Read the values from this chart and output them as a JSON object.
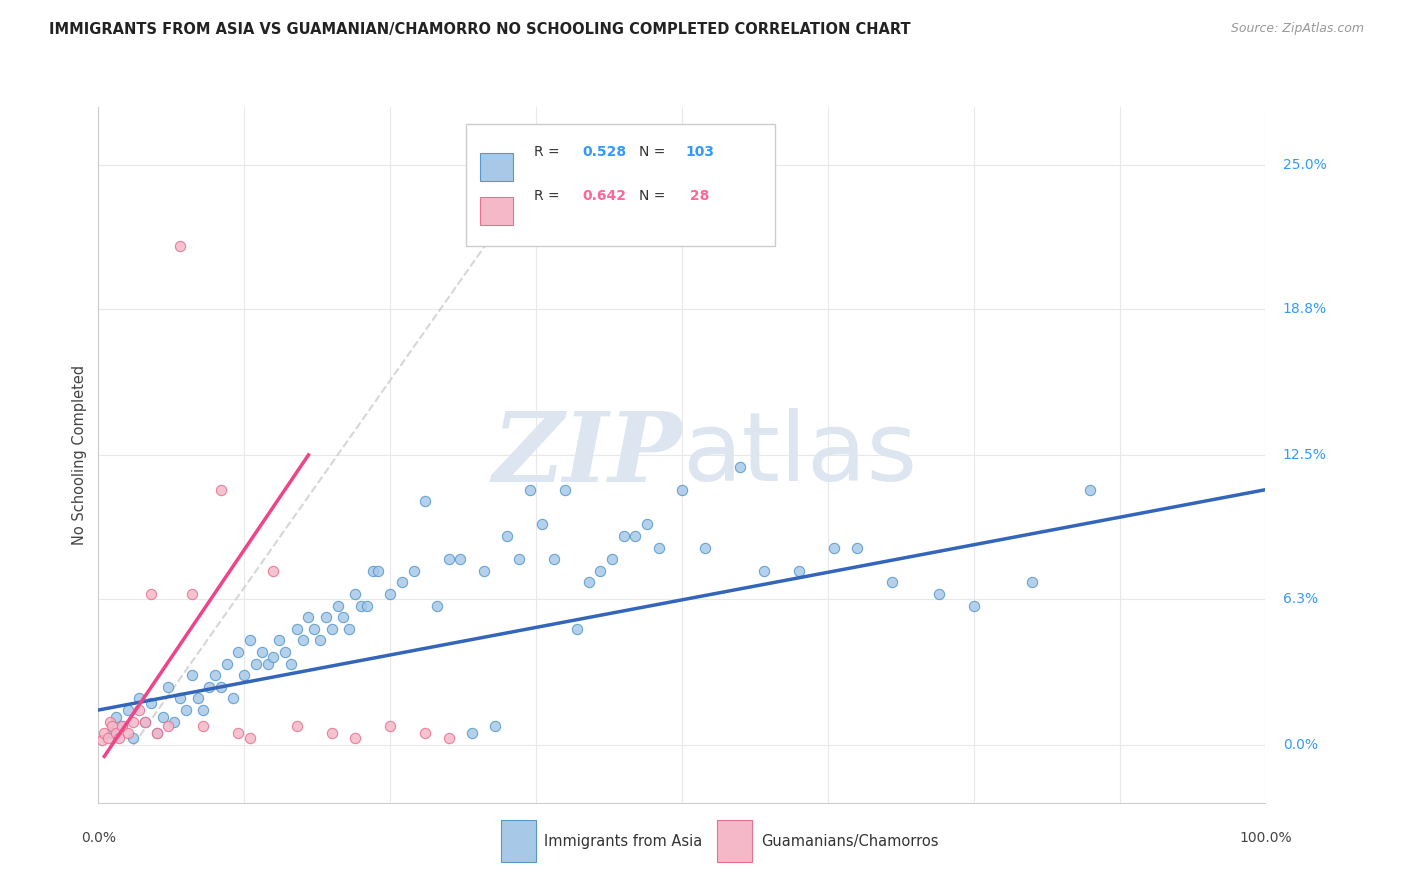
{
  "title": "IMMIGRANTS FROM ASIA VS GUAMANIAN/CHAMORRO NO SCHOOLING COMPLETED CORRELATION CHART",
  "source": "Source: ZipAtlas.com",
  "ylabel": "No Schooling Completed",
  "ytick_vals": [
    0.0,
    6.3,
    12.5,
    18.8,
    25.0
  ],
  "ytick_labels": [
    "0.0%",
    "6.3%",
    "12.5%",
    "18.8%",
    "25.0%"
  ],
  "xlim": [
    0.0,
    100.0
  ],
  "ylim": [
    -2.5,
    27.5
  ],
  "color_blue": "#a8c8e8",
  "color_pink": "#f4b8c8",
  "color_blue_edge": "#5599cc",
  "color_pink_edge": "#e87090",
  "color_blue_line": "#3366bb",
  "color_pink_line": "#ee4488",
  "color_blue_text": "#3399ff",
  "color_pink_text": "#ff6699",
  "color_dashed": "#cccccc",
  "watermark_color": "#dde5f0",
  "background_color": "#ffffff",
  "grid_color": "#e8e8e8",
  "legend_label1": "Immigrants from Asia",
  "legend_label2": "Guamanians/Chamorros",
  "blue_scatter_x": [
    1.2,
    1.5,
    2.0,
    2.5,
    3.0,
    3.5,
    4.0,
    4.5,
    5.0,
    5.5,
    6.0,
    6.5,
    7.0,
    7.5,
    8.0,
    8.5,
    9.0,
    9.5,
    10.0,
    10.5,
    11.0,
    11.5,
    12.0,
    12.5,
    13.0,
    13.5,
    14.0,
    14.5,
    15.0,
    15.5,
    16.0,
    16.5,
    17.0,
    17.5,
    18.0,
    18.5,
    19.0,
    19.5,
    20.0,
    20.5,
    21.0,
    21.5,
    22.0,
    22.5,
    23.0,
    23.5,
    24.0,
    25.0,
    26.0,
    27.0,
    28.0,
    29.0,
    30.0,
    31.0,
    32.0,
    33.0,
    34.0,
    35.0,
    36.0,
    37.0,
    38.0,
    39.0,
    40.0,
    41.0,
    42.0,
    43.0,
    44.0,
    45.0,
    46.0,
    47.0,
    48.0,
    50.0,
    52.0,
    55.0,
    57.0,
    60.0,
    63.0,
    65.0,
    68.0,
    72.0,
    75.0,
    80.0,
    85.0
  ],
  "blue_scatter_y": [
    0.5,
    1.2,
    0.8,
    1.5,
    0.3,
    2.0,
    1.0,
    1.8,
    0.5,
    1.2,
    2.5,
    1.0,
    2.0,
    1.5,
    3.0,
    2.0,
    1.5,
    2.5,
    3.0,
    2.5,
    3.5,
    2.0,
    4.0,
    3.0,
    4.5,
    3.5,
    4.0,
    3.5,
    3.8,
    4.5,
    4.0,
    3.5,
    5.0,
    4.5,
    5.5,
    5.0,
    4.5,
    5.5,
    5.0,
    6.0,
    5.5,
    5.0,
    6.5,
    6.0,
    6.0,
    7.5,
    7.5,
    6.5,
    7.0,
    7.5,
    10.5,
    6.0,
    8.0,
    8.0,
    0.5,
    7.5,
    0.8,
    9.0,
    8.0,
    11.0,
    9.5,
    8.0,
    11.0,
    5.0,
    7.0,
    7.5,
    8.0,
    9.0,
    9.0,
    9.5,
    8.5,
    11.0,
    8.5,
    12.0,
    7.5,
    7.5,
    8.5,
    8.5,
    7.0,
    6.5,
    6.0,
    7.0,
    11.0
  ],
  "pink_scatter_x": [
    0.3,
    0.5,
    0.8,
    1.0,
    1.2,
    1.5,
    1.8,
    2.0,
    2.5,
    3.0,
    3.5,
    4.0,
    4.5,
    5.0,
    6.0,
    7.0,
    8.0,
    9.0,
    10.5,
    12.0,
    13.0,
    15.0,
    17.0,
    20.0,
    22.0,
    25.0,
    28.0,
    30.0
  ],
  "pink_scatter_y": [
    0.2,
    0.5,
    0.3,
    1.0,
    0.8,
    0.5,
    0.3,
    0.8,
    0.5,
    1.0,
    1.5,
    1.0,
    6.5,
    0.5,
    0.8,
    21.5,
    6.5,
    0.8,
    11.0,
    0.5,
    0.3,
    7.5,
    0.8,
    0.5,
    0.3,
    0.8,
    0.5,
    0.3
  ],
  "blue_line_x": [
    0.0,
    100.0
  ],
  "blue_line_y": [
    1.5,
    11.0
  ],
  "pink_line_x": [
    0.5,
    18.0
  ],
  "pink_line_y": [
    -0.5,
    12.5
  ],
  "dashed_line_x": [
    3.0,
    38.0
  ],
  "dashed_line_y": [
    0.0,
    25.0
  ]
}
